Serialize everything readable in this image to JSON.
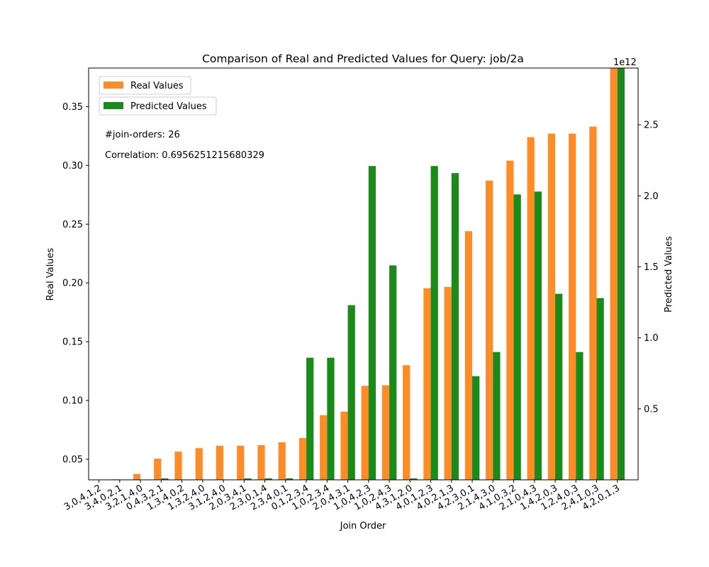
{
  "chart_data": {
    "type": "bar",
    "title": "Comparison of Real and Predicted Values for Query: job/2a",
    "xlabel": "Join Order",
    "ylabel": "Real Values",
    "y2label": "Predicted Values",
    "y2_offset_text": "1e12",
    "ylim": [
      0.0325,
      0.3828
    ],
    "y2lim": [
      0.0,
      2.9
    ],
    "yticks": [
      0.05,
      0.1,
      0.15,
      0.2,
      0.25,
      0.3,
      0.35
    ],
    "ytick_labels": [
      "0.05",
      "0.10",
      "0.15",
      "0.20",
      "0.25",
      "0.30",
      "0.35"
    ],
    "y2ticks": [
      0.5,
      1.0,
      1.5,
      2.0,
      2.5
    ],
    "y2tick_labels": [
      "0.5",
      "1.0",
      "1.5",
      "2.0",
      "2.5"
    ],
    "legend_position": "top-left",
    "categories": [
      "3,0,4,1,2",
      "3,4,0,2,1",
      "3,2,1,4,0",
      "0,4,3,2,1",
      "1,3,4,0,2",
      "1,3,2,4,0",
      "3,1,2,4,0",
      "2,0,3,4,1",
      "2,3,0,1,4",
      "2,3,4,0,1",
      "0,1,2,3,4",
      "1,0,2,3,4",
      "2,0,4,3,1",
      "1,0,4,2,3",
      "1,0,2,4,3",
      "4,3,1,2,0",
      "4,0,1,2,3",
      "4,0,2,1,3",
      "4,2,3,0,1",
      "2,1,4,3,0",
      "4,1,0,3,2",
      "2,1,0,4,3",
      "1,4,2,0,3",
      "1,2,4,0,3",
      "2,4,1,0,3",
      "4,2,0,1,3"
    ],
    "series": [
      {
        "name": "Real Values",
        "axis": "left",
        "color": "#ff8c27",
        "values": [
          0.0325,
          0.033,
          0.0375,
          0.0505,
          0.0565,
          0.0595,
          0.0615,
          0.0615,
          0.062,
          0.0645,
          0.068,
          0.0875,
          0.0905,
          0.1125,
          0.113,
          0.13,
          0.1955,
          0.1965,
          0.244,
          0.287,
          0.304,
          0.324,
          0.327,
          0.327,
          0.333,
          0.383
        ]
      },
      {
        "name": "Predicted Values",
        "axis": "right",
        "color": "#1a8a1a",
        "values": [
          0.0,
          0.0,
          0.0,
          0.01,
          0.0,
          0.0,
          0.0,
          0.01,
          0.01,
          0.01,
          0.86,
          0.86,
          1.23,
          2.21,
          1.51,
          0.01,
          2.21,
          2.16,
          0.73,
          0.9,
          2.01,
          2.03,
          1.31,
          0.9,
          1.28,
          2.9
        ]
      }
    ],
    "annotations": [
      "#join-orders: 26",
      "Correlation: 0.6956251215680329"
    ]
  }
}
